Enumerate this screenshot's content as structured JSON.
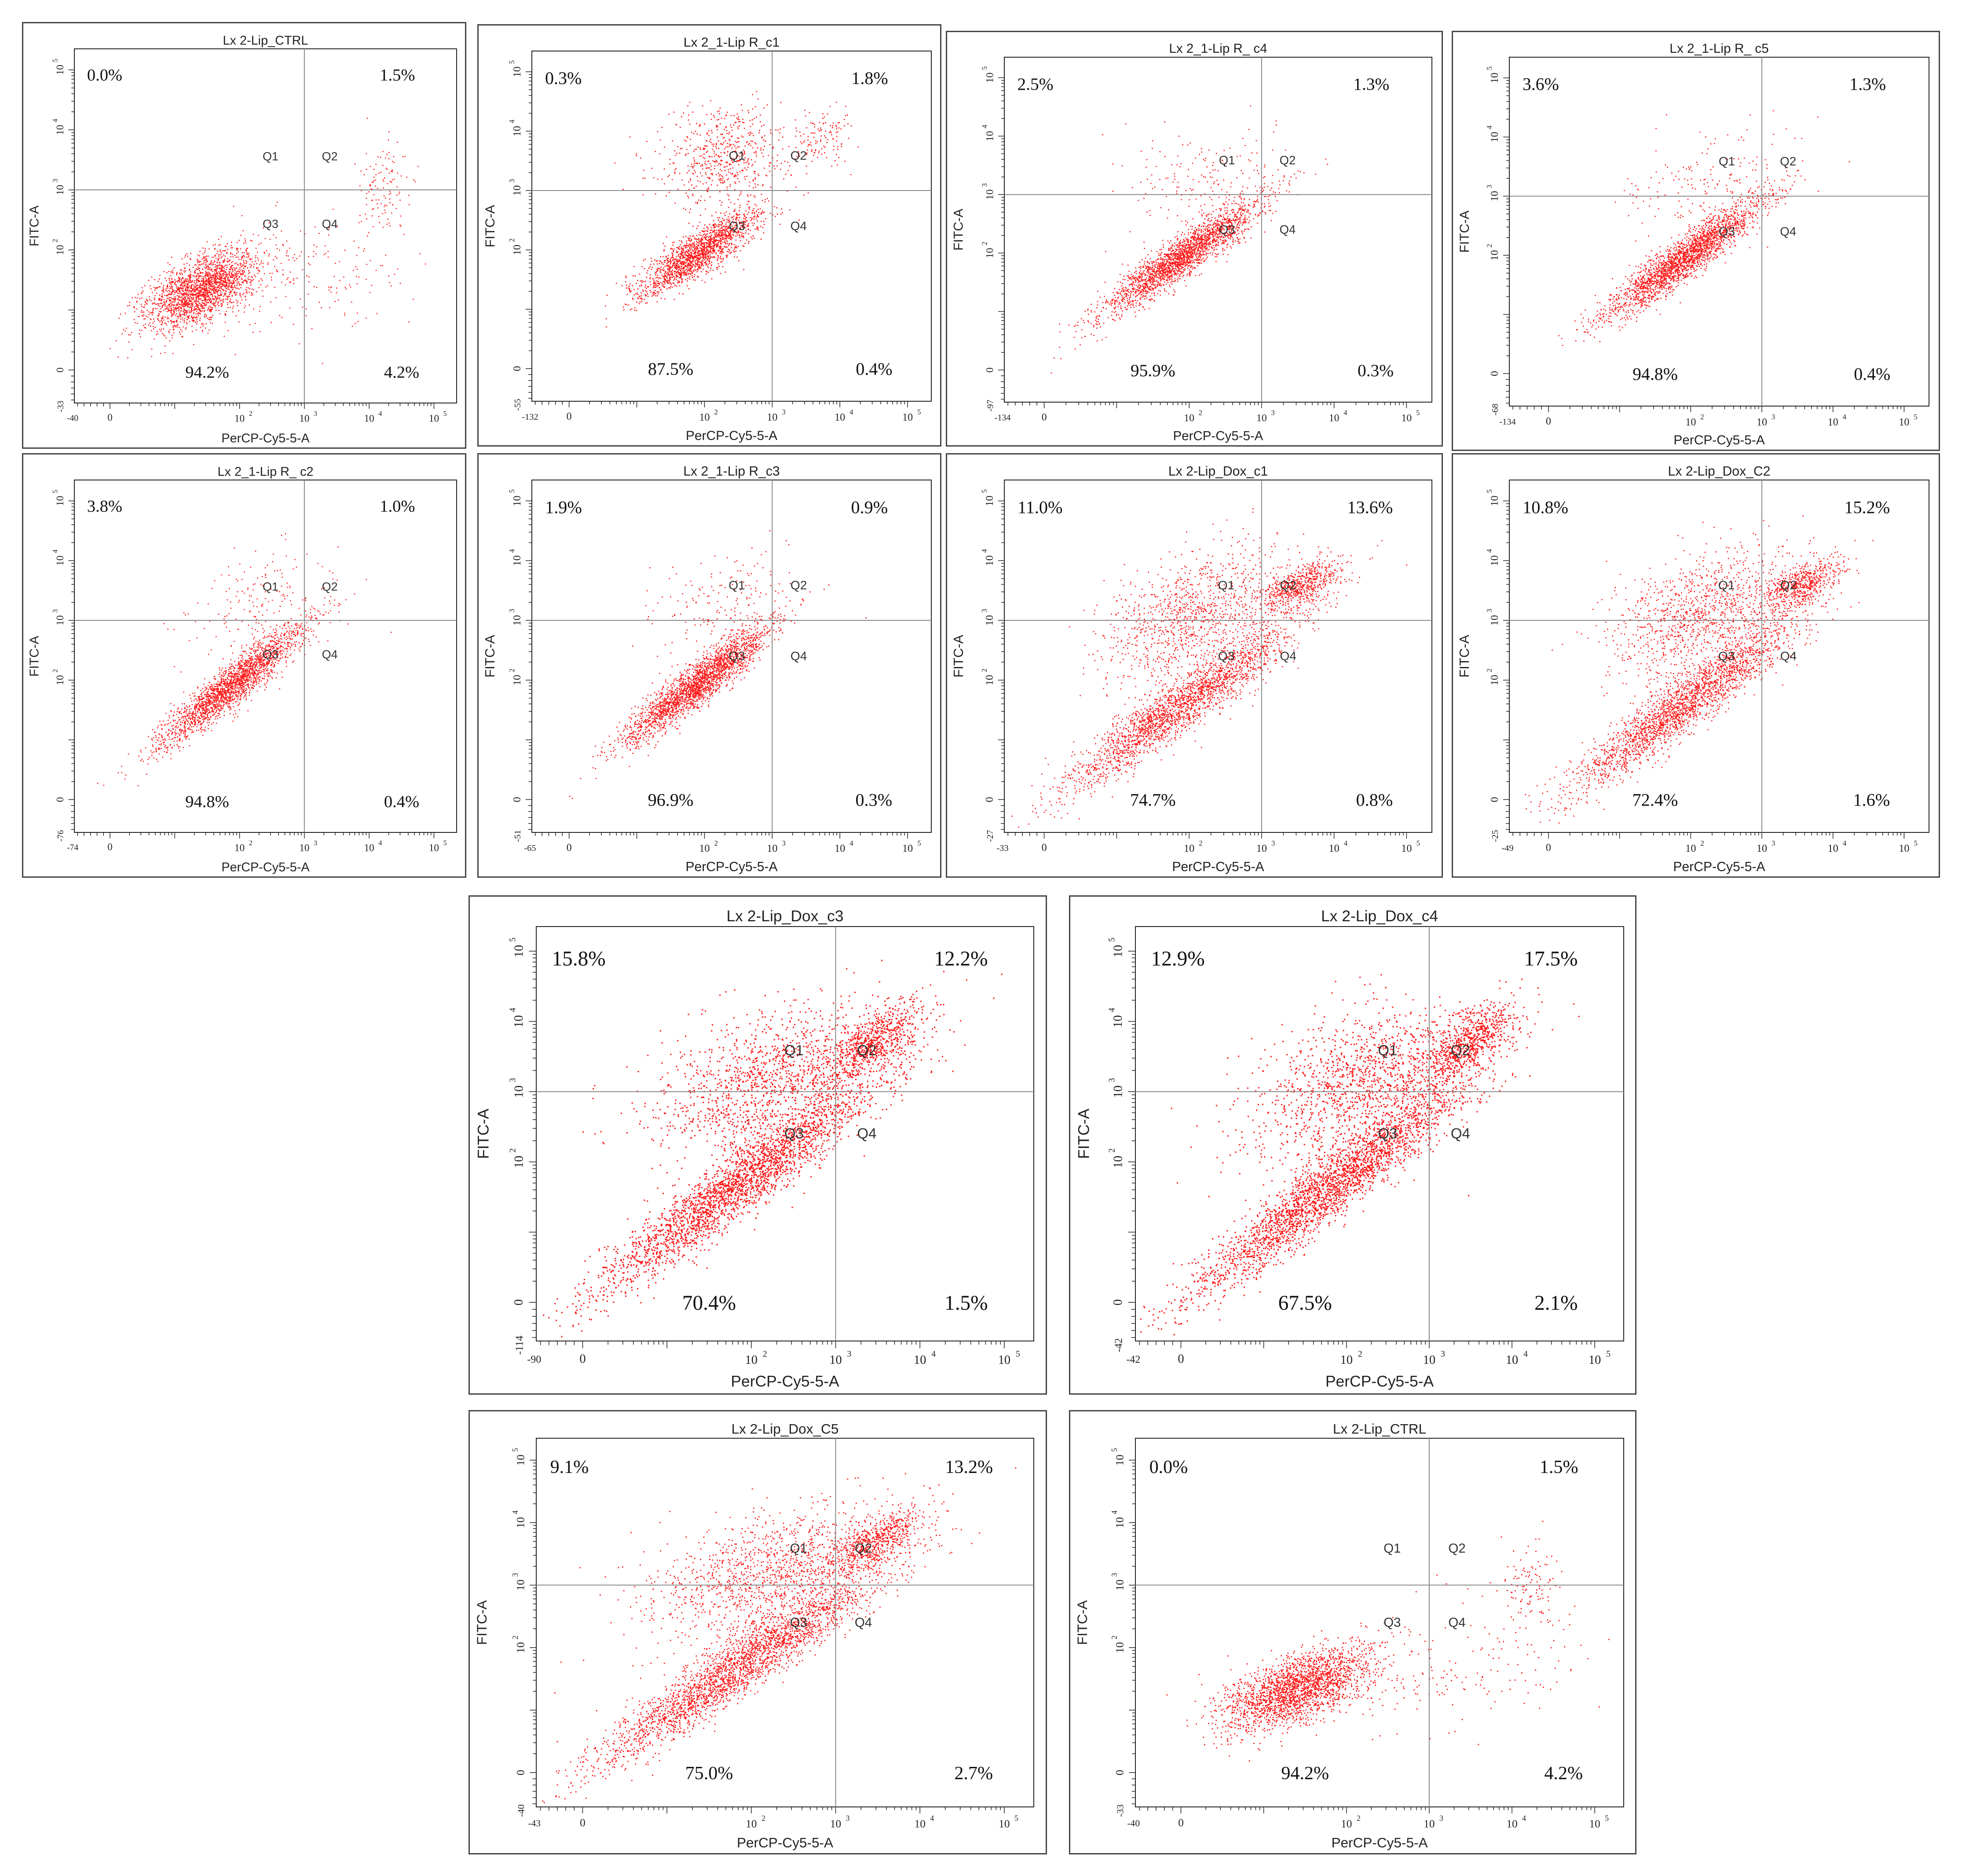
{
  "figure": {
    "description_free": true
  },
  "colors": {
    "dot": "#ff1a1a",
    "axis": "#222222",
    "gate": "#888888",
    "frame": "#444444"
  },
  "chart_data": [
    {
      "id": "r1c1",
      "type": "scatter",
      "title": "Lx 2-Lip_CTRL",
      "xlabel": "PerCP-Cy5-5-A",
      "ylabel": "FITC-A",
      "xmin_label": "-40",
      "ymin_label": "-33",
      "xlim": [
        -40,
        100000
      ],
      "ylim": [
        -33,
        100000
      ],
      "gate": [
        1000,
        1000
      ],
      "quadrants": {
        "Q1": "Q1",
        "Q2": "Q2",
        "Q3": "Q3",
        "Q4": "Q4"
      },
      "percentages": {
        "Q1": "0.0%",
        "Q2": "1.5%",
        "Q3": "94.2%",
        "Q4": "4.2%"
      },
      "pattern": "ctrl"
    },
    {
      "id": "r1c2",
      "type": "scatter",
      "title": "Lx 2_1-Lip R_c1",
      "xlabel": "PerCP-Cy5-5-A",
      "ylabel": "FITC-A",
      "xmin_label": "-132",
      "ymin_label": "-55",
      "xlim": [
        -132,
        100000
      ],
      "ylim": [
        -55,
        100000
      ],
      "gate": [
        1000,
        1000
      ],
      "quadrants": {
        "Q1": "Q1",
        "Q2": "Q2",
        "Q3": "Q3",
        "Q4": "Q4"
      },
      "percentages": {
        "Q1": "0.3%",
        "Q2": "1.8%",
        "Q3": "87.5%",
        "Q4": "0.4%"
      },
      "pattern": "rc1"
    },
    {
      "id": "r1c3",
      "type": "scatter",
      "title": "Lx 2_1-Lip R_ c4",
      "xlabel": "PerCP-Cy5-5-A",
      "ylabel": "FITC-A",
      "xmin_label": "-134",
      "ymin_label": "-97",
      "xlim": [
        -134,
        100000
      ],
      "ylim": [
        -97,
        100000
      ],
      "gate": [
        1000,
        1000
      ],
      "quadrants": {
        "Q1": "Q1",
        "Q2": "Q2",
        "Q3": "Q3",
        "Q4": "Q4"
      },
      "percentages": {
        "Q1": "2.5%",
        "Q2": "1.3%",
        "Q3": "95.9%",
        "Q4": "0.3%"
      },
      "pattern": "diag"
    },
    {
      "id": "r1c4",
      "type": "scatter",
      "title": "Lx 2_1-Lip R_ c5",
      "xlabel": "PerCP-Cy5-5-A",
      "ylabel": "FITC-A",
      "xmin_label": "-134",
      "ymin_label": "-68",
      "xlim": [
        -134,
        100000
      ],
      "ylim": [
        -68,
        100000
      ],
      "gate": [
        1000,
        1000
      ],
      "quadrants": {
        "Q1": "Q1",
        "Q2": "Q2",
        "Q3": "Q3",
        "Q4": "Q4"
      },
      "percentages": {
        "Q1": "3.6%",
        "Q2": "1.3%",
        "Q3": "94.8%",
        "Q4": "0.4%"
      },
      "pattern": "diag"
    },
    {
      "id": "r2c1",
      "type": "scatter",
      "title": "Lx 2_1-Lip R_ c2",
      "xlabel": "PerCP-Cy5-5-A",
      "ylabel": "FITC-A",
      "xmin_label": "-74",
      "ymin_label": "-76",
      "xlim": [
        -74,
        100000
      ],
      "ylim": [
        -76,
        100000
      ],
      "gate": [
        1000,
        1000
      ],
      "quadrants": {
        "Q1": "Q1",
        "Q2": "Q2",
        "Q3": "Q3",
        "Q4": "Q4"
      },
      "percentages": {
        "Q1": "3.8%",
        "Q2": "1.0%",
        "Q3": "94.8%",
        "Q4": "0.4%"
      },
      "pattern": "diag"
    },
    {
      "id": "r2c2",
      "type": "scatter",
      "title": "Lx 2_1-Lip R_c3",
      "xlabel": "PerCP-Cy5-5-A",
      "ylabel": "FITC-A",
      "xmin_label": "-65",
      "ymin_label": "-51",
      "xlim": [
        -65,
        100000
      ],
      "ylim": [
        -51,
        100000
      ],
      "gate": [
        1000,
        1000
      ],
      "quadrants": {
        "Q1": "Q1",
        "Q2": "Q2",
        "Q3": "Q3",
        "Q4": "Q4"
      },
      "percentages": {
        "Q1": "1.9%",
        "Q2": "0.9%",
        "Q3": "96.9%",
        "Q4": "0.3%"
      },
      "pattern": "diag"
    },
    {
      "id": "r2c3",
      "type": "scatter",
      "title": "Lx 2-Lip_Dox_c1",
      "xlabel": "PerCP-Cy5-5-A",
      "ylabel": "FITC-A",
      "xmin_label": "-33",
      "ymin_label": "-27",
      "xlim": [
        -33,
        100000
      ],
      "ylim": [
        -27,
        100000
      ],
      "gate": [
        1000,
        1000
      ],
      "quadrants": {
        "Q1": "Q1",
        "Q2": "Q2",
        "Q3": "Q3",
        "Q4": "Q4"
      },
      "percentages": {
        "Q1": "11.0%",
        "Q2": "13.6%",
        "Q3": "74.7%",
        "Q4": "0.8%"
      },
      "pattern": "dox"
    },
    {
      "id": "r2c4",
      "type": "scatter",
      "title": "Lx 2-Lip_Dox_C2",
      "xlabel": "PerCP-Cy5-5-A",
      "ylabel": "FITC-A",
      "xmin_label": "-49",
      "ymin_label": "-25",
      "xlim": [
        -49,
        100000
      ],
      "ylim": [
        -25,
        100000
      ],
      "gate": [
        1000,
        1000
      ],
      "quadrants": {
        "Q1": "Q1",
        "Q2": "Q2",
        "Q3": "Q3",
        "Q4": "Q4"
      },
      "percentages": {
        "Q1": "10.8%",
        "Q2": "15.2%",
        "Q3": "72.4%",
        "Q4": "1.6%"
      },
      "pattern": "dox"
    },
    {
      "id": "r3c1",
      "type": "scatter",
      "title": "Lx 2-Lip_Dox_c3",
      "xlabel": "PerCP-Cy5-5-A",
      "ylabel": "FITC-A",
      "xmin_label": "-90",
      "ymin_label": "-114",
      "xlim": [
        -90,
        100000
      ],
      "ylim": [
        -114,
        100000
      ],
      "gate": [
        1000,
        1000
      ],
      "quadrants": {
        "Q1": "Q1",
        "Q2": "Q2",
        "Q3": "Q3",
        "Q4": "Q4"
      },
      "percentages": {
        "Q1": "15.8%",
        "Q2": "12.2%",
        "Q3": "70.4%",
        "Q4": "1.5%"
      },
      "pattern": "doxbig"
    },
    {
      "id": "r3c2",
      "type": "scatter",
      "title": "Lx 2-Lip_Dox_c4",
      "xlabel": "PerCP-Cy5-5-A",
      "ylabel": "FITC-A",
      "xmin_label": "-42",
      "ymin_label": "-42",
      "xlim": [
        -42,
        100000
      ],
      "ylim": [
        -42,
        100000
      ],
      "gate": [
        1000,
        1000
      ],
      "quadrants": {
        "Q1": "Q1",
        "Q2": "Q2",
        "Q3": "Q3",
        "Q4": "Q4"
      },
      "percentages": {
        "Q1": "12.9%",
        "Q2": "17.5%",
        "Q3": "67.5%",
        "Q4": "2.1%"
      },
      "pattern": "doxbig"
    },
    {
      "id": "r4c1",
      "type": "scatter",
      "title": "Lx 2-Lip_Dox_C5",
      "xlabel": "PerCP-Cy5-5-A",
      "ylabel": "FITC-A",
      "xmin_label": "-43",
      "ymin_label": "-40",
      "xlim": [
        -43,
        100000
      ],
      "ylim": [
        -40,
        100000
      ],
      "gate": [
        1000,
        1000
      ],
      "quadrants": {
        "Q1": "Q1",
        "Q2": "Q2",
        "Q3": "Q3",
        "Q4": "Q4"
      },
      "percentages": {
        "Q1": "9.1%",
        "Q2": "13.2%",
        "Q3": "75.0%",
        "Q4": "2.7%"
      },
      "pattern": "doxbig"
    },
    {
      "id": "r4c2",
      "type": "scatter",
      "title": "Lx 2-Lip_CTRL",
      "xlabel": "PerCP-Cy5-5-A",
      "ylabel": "FITC-A",
      "xmin_label": "-40",
      "ymin_label": "-33",
      "xlim": [
        -40,
        100000
      ],
      "ylim": [
        -33,
        100000
      ],
      "gate": [
        1000,
        1000
      ],
      "quadrants": {
        "Q1": "Q1",
        "Q2": "Q2",
        "Q3": "Q3",
        "Q4": "Q4"
      },
      "percentages": {
        "Q1": "0.0%",
        "Q2": "1.5%",
        "Q3": "94.2%",
        "Q4": "4.2%"
      },
      "pattern": "ctrl"
    }
  ],
  "axis_ticks": {
    "zero": "0",
    "p2": "10",
    "p3": "10",
    "p4": "10",
    "p5": "10",
    "e2": "2",
    "e3": "3",
    "e4": "4",
    "e5": "5"
  }
}
